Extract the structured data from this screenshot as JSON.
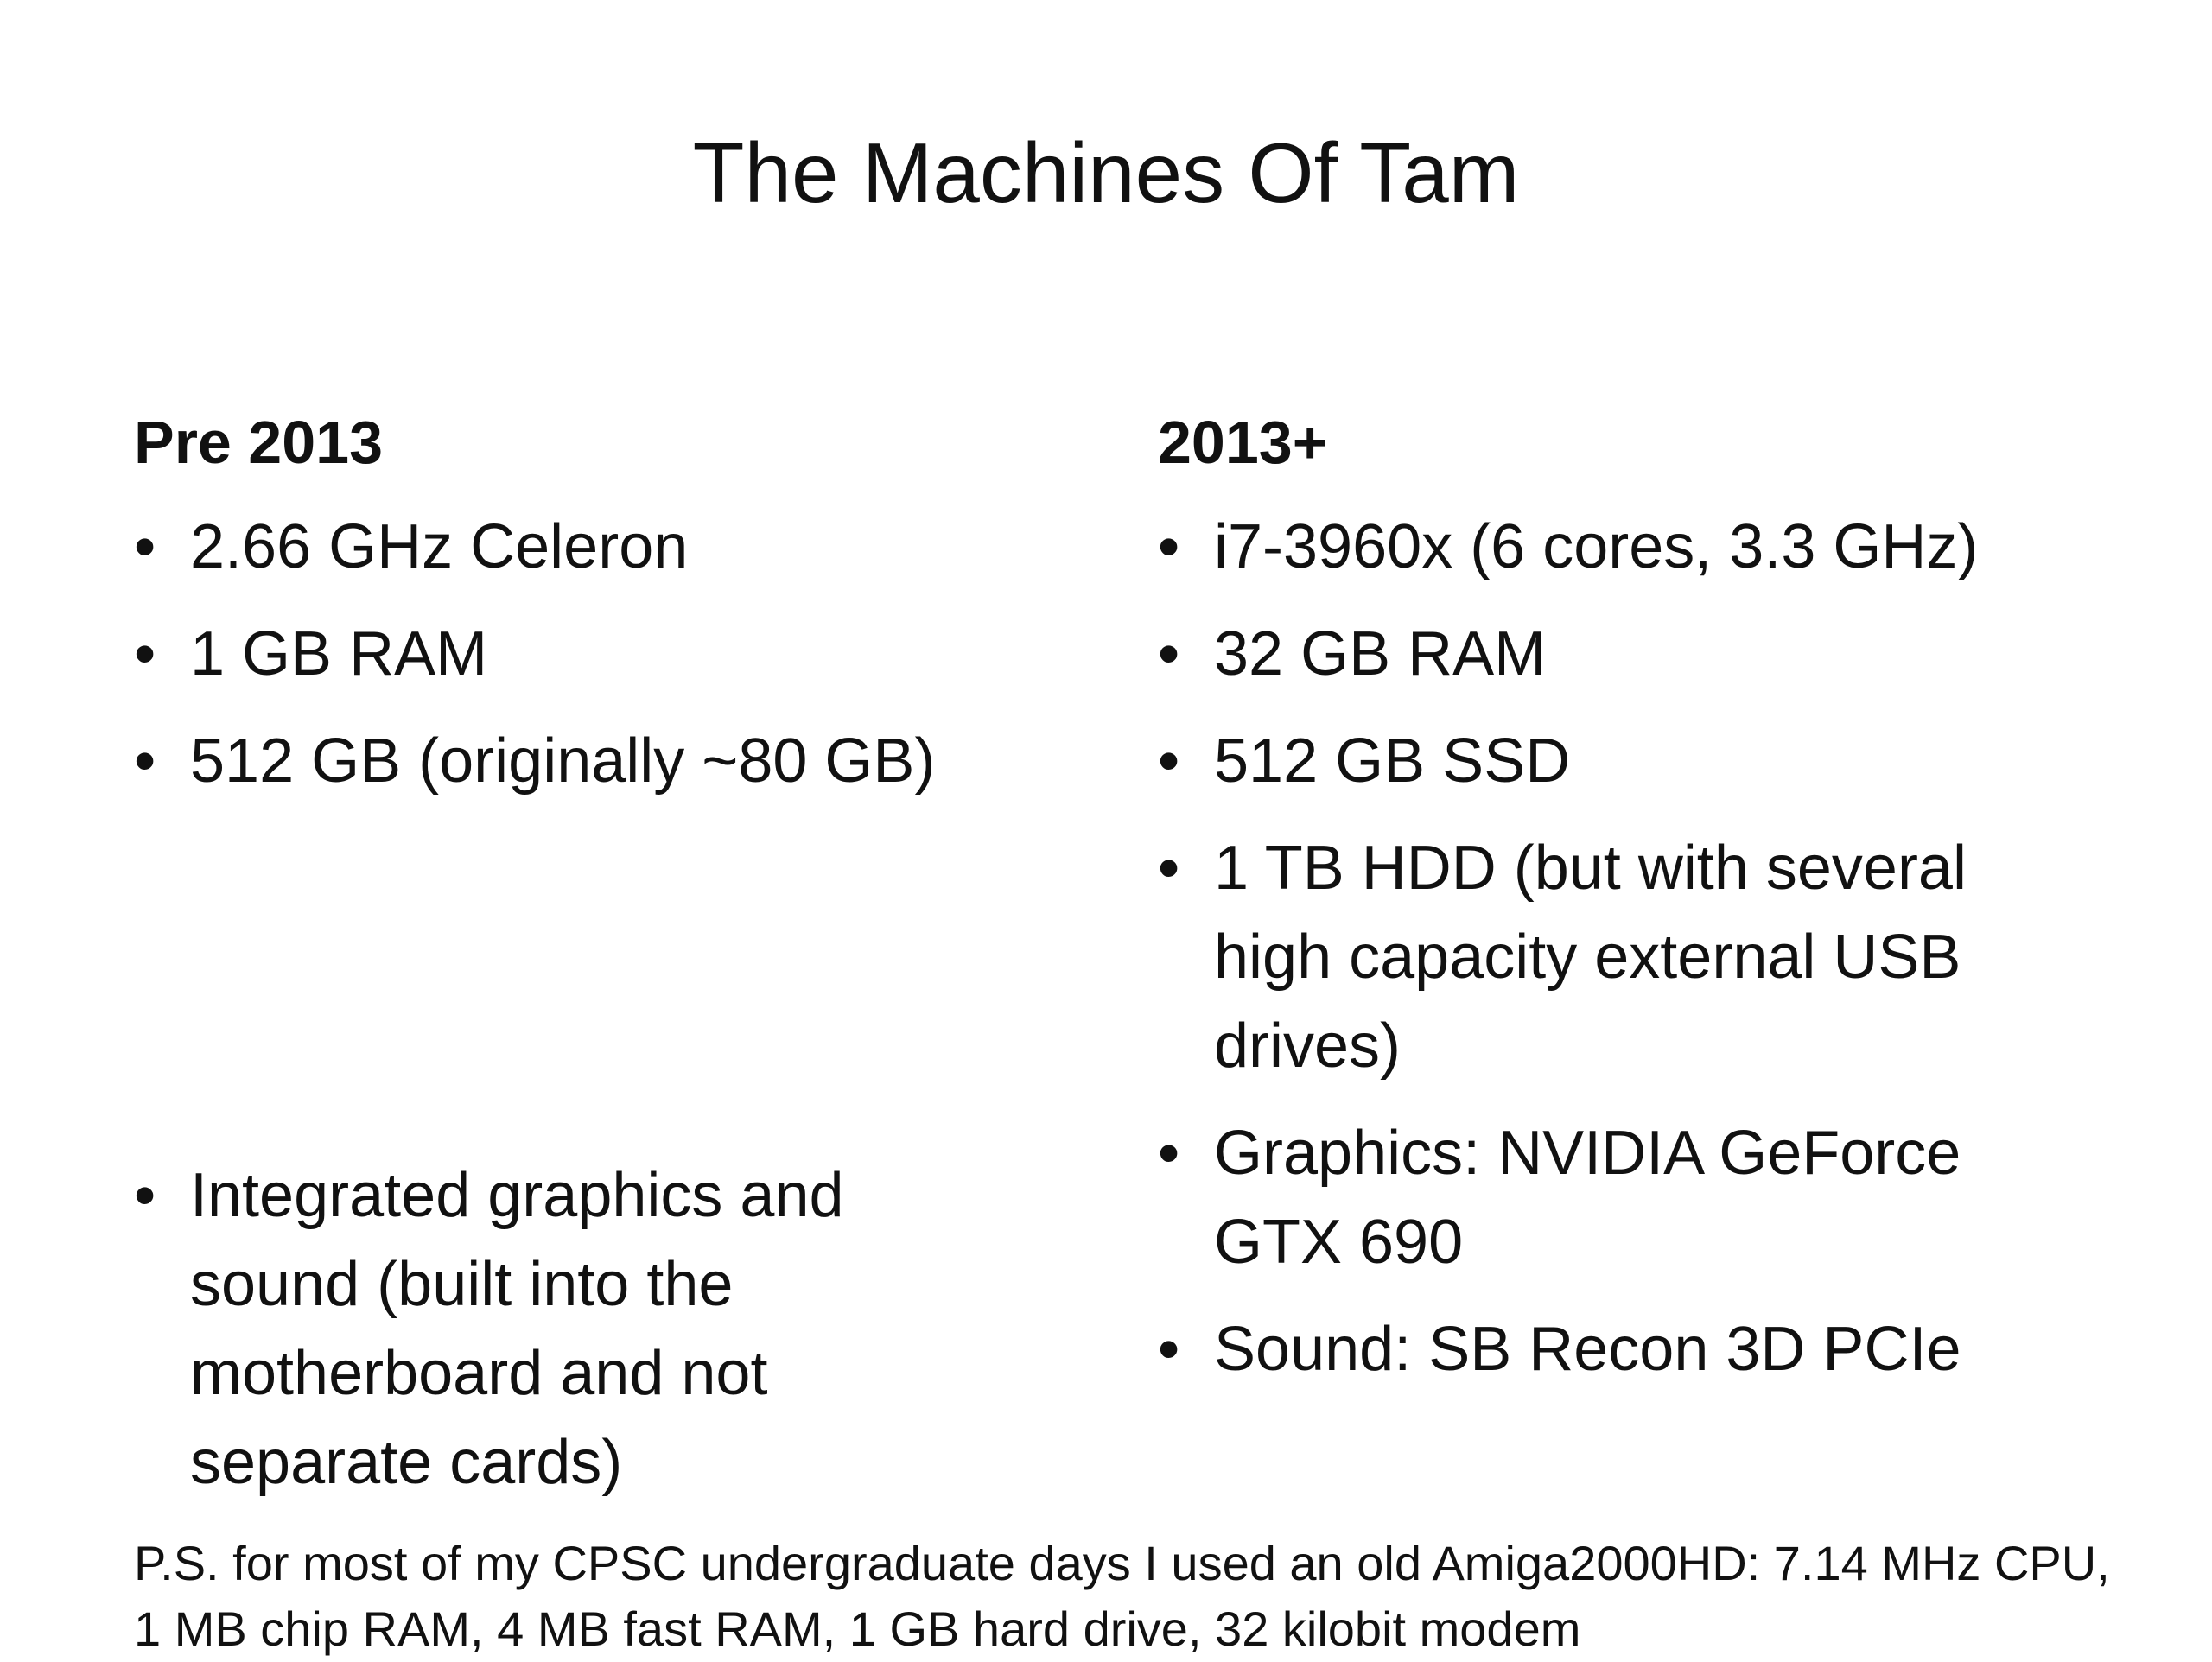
{
  "slide": {
    "title": "The Machines Of Tam",
    "left_column": {
      "heading": "Pre 2013",
      "items": [
        "2.66 GHz Celeron",
        "1 GB RAM",
        "512 GB (originally ~80 GB)",
        "Integrated graphics  and sound (built into the motherboard and not separate cards)"
      ]
    },
    "right_column": {
      "heading": "2013+",
      "items": [
        "i7-3960x (6 cores, 3.3 GHz)",
        "32 GB RAM",
        "512 GB SSD",
        "1 TB HDD (but with several high capacity external USB drives)",
        "Graphics: NVIDIA GeForce GTX 690",
        "Sound: SB Recon 3D PCIe"
      ]
    },
    "footnote": "P.S. for most of my CPSC undergraduate days I used an old Amiga2000HD: 7.14 MHz CPU, 1 MB chip RAM, 4 MB fast RAM, 1 GB hard drive, 32 kilobit modem",
    "bullet_glyph": "•"
  }
}
